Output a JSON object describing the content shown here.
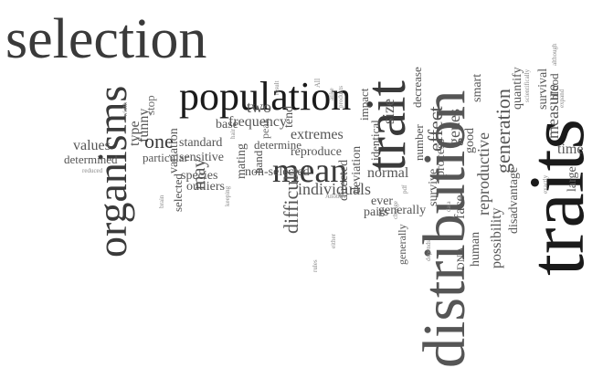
{
  "cloud": {
    "words": {
      "selection": "selection",
      "organisms": "organisms",
      "population": "population",
      "trait": "trait",
      "traits": "traits",
      "distribution": "distribution",
      "mean": "mean",
      "reproductive": "reproductive",
      "generation": "generation",
      "individuals": "individuals",
      "extremes": "extremes",
      "difficult": "difficult",
      "normal": "normal",
      "frequency": "frequency",
      "values": "values",
      "determined": "determined",
      "funny": "funny",
      "type": "type",
      "one": "one",
      "two": "two",
      "may": "may",
      "base": "base",
      "particular": "particular",
      "variation": "variation",
      "standard": "standard",
      "sensitive": "sensitive",
      "species": "species",
      "outliers": "outliers",
      "non_selected": "non-selected",
      "mating": "mating",
      "peak": "peak",
      "determine": "determine",
      "reproduce": "reproduce",
      "tend": "tend",
      "directed": "directed",
      "deviation": "deviation",
      "identical": "identical",
      "impact": "impact",
      "ever": "ever",
      "pairs": "pairs",
      "generally": "generally",
      "number": "number",
      "effect": "effect",
      "decrease": "decrease",
      "size": "size",
      "survive": "survive",
      "process": "process",
      "genes": "genes",
      "face": "face",
      "good": "good",
      "smart": "smart",
      "human": "human",
      "possibility": "possibility",
      "disadvantage": "disadvantage",
      "quantify": "quantify",
      "measure": "measure",
      "time": "time",
      "large": "large",
      "survival": "survival",
      "blood": "blood",
      "DNA": "DNA",
      "stop": "stop",
      "hand": "hand",
      "selected": "selected",
      "scientifically": "scientifically",
      "reduced": "reduced",
      "brain": "brain",
      "although": "although",
      "depends": "depends",
      "data": "data",
      "exactly": "exactly",
      "another": "Another",
      "either": "either",
      "all": "All",
      "change": "change",
      "hair": "hair",
      "keeping": "keeping",
      "result": "result",
      "expand": "expand",
      "alike": "alike",
      "products": "products",
      "width": "width",
      "rules": "rules",
      "pdf": "pdf"
    }
  }
}
